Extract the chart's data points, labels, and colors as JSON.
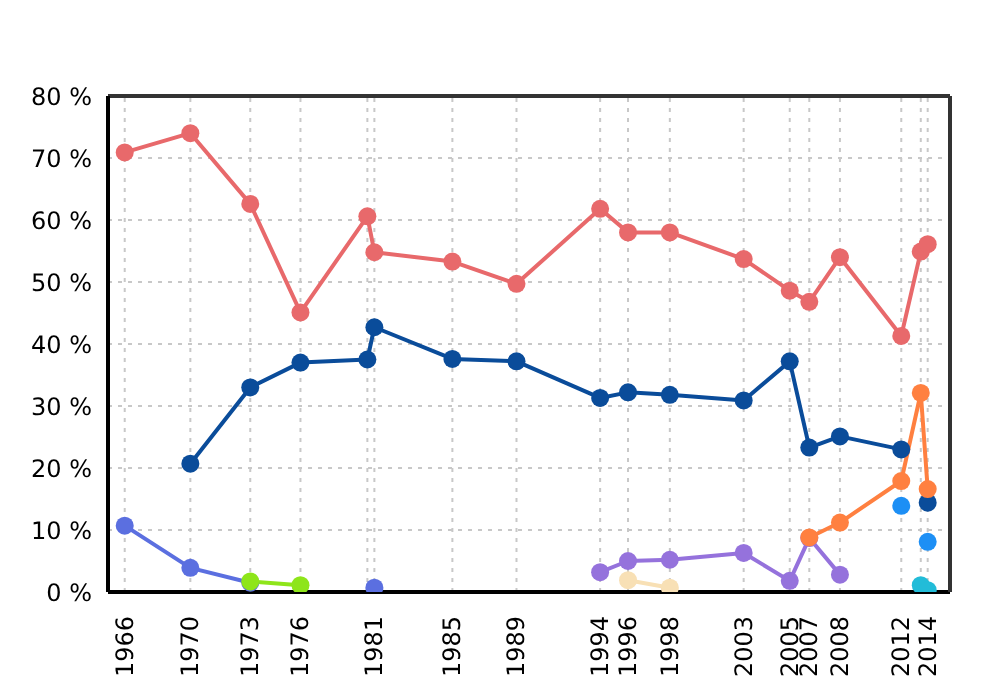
{
  "chart_data": {
    "type": "line",
    "marker": "circle",
    "line_style": "solid",
    "grid": true,
    "x": [
      "1966-03",
      "1970-02",
      "1973-09",
      "1976-09",
      "1980-09",
      "1981-02",
      "1985-10",
      "1989-08",
      "1994-08",
      "1996-04",
      "1998-10",
      "2003-03",
      "2005-12",
      "2007-02",
      "2008-12",
      "2012-08",
      "2013-10",
      "2014-03"
    ],
    "xlim": [
      "1965-03",
      "2015-07"
    ],
    "xticks": [
      {
        "value": "1966-03",
        "label": "1966"
      },
      {
        "value": "1970-02",
        "label": "1970"
      },
      {
        "value": "1973-09",
        "label": "1973"
      },
      {
        "value": "1976-09",
        "label": "1976"
      },
      {
        "value": "1980-09",
        "label": null
      },
      {
        "value": "1981-02",
        "label": "1981"
      },
      {
        "value": "1985-10",
        "label": "1985"
      },
      {
        "value": "1989-08",
        "label": "1989"
      },
      {
        "value": "1994-08",
        "label": "1994"
      },
      {
        "value": "1996-04",
        "label": "1996"
      },
      {
        "value": "1998-10",
        "label": "1998"
      },
      {
        "value": "2003-03",
        "label": "2003"
      },
      {
        "value": "2005-12",
        "label": "2005"
      },
      {
        "value": "2007-02",
        "label": "2007"
      },
      {
        "value": "2008-12",
        "label": "2008"
      },
      {
        "value": "2012-08",
        "label": "2012"
      },
      {
        "value": "2013-10",
        "label": null
      },
      {
        "value": "2014-03",
        "label": "2014"
      }
    ],
    "ylim": [
      0,
      80
    ],
    "yticks": [
      {
        "value": 0,
        "label": "0 %"
      },
      {
        "value": 10,
        "label": "10 %"
      },
      {
        "value": 20,
        "label": "20 %"
      },
      {
        "value": 30,
        "label": "30 %"
      },
      {
        "value": 40,
        "label": "40 %"
      },
      {
        "value": 50,
        "label": "50 %"
      },
      {
        "value": 60,
        "label": "60 %"
      },
      {
        "value": 70,
        "label": "70 %"
      },
      {
        "value": 80,
        "label": "80 %"
      }
    ],
    "series": [
      {
        "color": "#e8696b",
        "values": [
          70.9,
          74.0,
          62.6,
          45.1,
          60.6,
          54.8,
          53.3,
          49.7,
          61.8,
          58.0,
          58.0,
          53.7,
          48.6,
          46.8,
          54.0,
          41.3,
          54.9,
          56.1
        ]
      },
      {
        "color": "#0a4c9a",
        "values": [
          null,
          20.7,
          33.0,
          37.0,
          37.5,
          42.7,
          37.6,
          37.2,
          31.3,
          32.2,
          31.8,
          30.9,
          37.2,
          23.3,
          25.1,
          23.0,
          null,
          14.4
        ]
      },
      {
        "color": "#5b6fe0",
        "values": [
          10.7,
          3.9,
          1.5,
          null,
          null,
          0.7,
          null,
          null,
          null,
          null,
          null,
          null,
          null,
          null,
          null,
          null,
          null,
          null
        ]
      },
      {
        "color": "#8ee51a",
        "values": [
          null,
          null,
          1.7,
          1.1,
          null,
          null,
          null,
          null,
          null,
          null,
          null,
          null,
          null,
          null,
          null,
          null,
          null,
          null
        ]
      },
      {
        "color": "#9572dc",
        "values": [
          null,
          null,
          null,
          null,
          null,
          null,
          null,
          null,
          3.2,
          5.0,
          5.2,
          6.3,
          1.8,
          8.7,
          2.8,
          null,
          null,
          null
        ]
      },
      {
        "color": "#f8e0b5",
        "values": [
          null,
          null,
          null,
          null,
          null,
          null,
          null,
          null,
          null,
          1.9,
          0.7,
          null,
          null,
          null,
          null,
          null,
          null,
          null
        ]
      },
      {
        "color": "#ff8040",
        "values": [
          null,
          null,
          null,
          null,
          null,
          null,
          null,
          null,
          null,
          null,
          null,
          null,
          null,
          8.8,
          11.2,
          17.9,
          32.1,
          16.6
        ]
      },
      {
        "type": "scatter",
        "color": "#1d8ff5",
        "values": [
          null,
          null,
          null,
          null,
          null,
          null,
          null,
          null,
          null,
          null,
          null,
          null,
          null,
          null,
          null,
          13.9,
          null,
          8.1
        ]
      },
      {
        "type": "scatter",
        "color": "#22bcd8",
        "values": [
          null,
          null,
          null,
          null,
          null,
          null,
          null,
          null,
          null,
          null,
          null,
          null,
          null,
          null,
          null,
          null,
          1.1,
          0.3
        ]
      }
    ]
  }
}
